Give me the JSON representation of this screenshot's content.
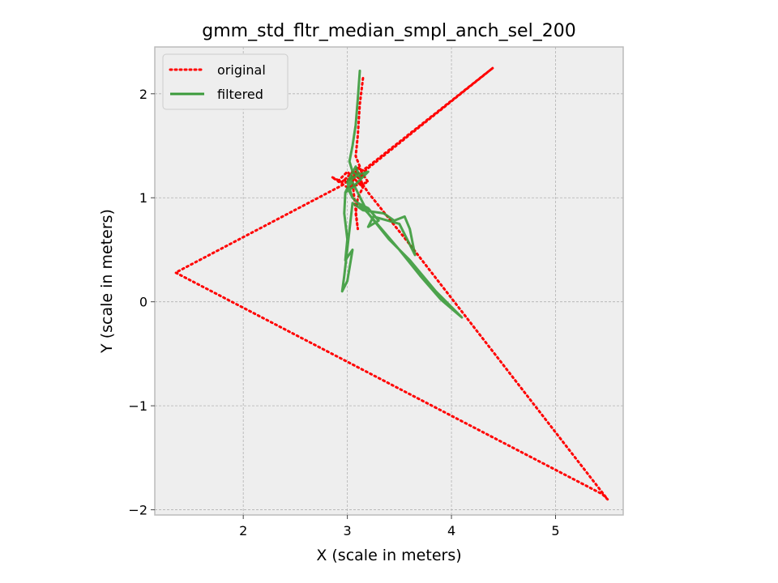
{
  "chart_data": {
    "type": "line",
    "title": "gmm_std_fltr_median_smpl_anch_sel_200",
    "xlabel": "X (scale in meters)",
    "ylabel": "Y (scale in meters)",
    "xlim": [
      1.15,
      5.65
    ],
    "ylim": [
      -2.05,
      2.45
    ],
    "xticks": [
      2,
      3,
      4,
      5
    ],
    "xtick_labels": [
      "2",
      "3",
      "4",
      "5"
    ],
    "yticks": [
      -2,
      -1,
      0,
      1,
      2
    ],
    "ytick_labels": [
      "−2",
      "−1",
      "0",
      "1",
      "2"
    ],
    "grid": true,
    "legend_position": "top-left",
    "series": [
      {
        "name": "original",
        "color": "#ff0000",
        "style": "dotted",
        "x": [
          3.15,
          3.12,
          3.1,
          3.08,
          3.12,
          3.15,
          3.05,
          2.95,
          2.85,
          3.0,
          3.2,
          3.1,
          3.05,
          3.15,
          3.12,
          4.4,
          3.2,
          3.05,
          2.95,
          1.35,
          5.45,
          5.5,
          3.6,
          3.2,
          3.1,
          2.9,
          3.0,
          3.15,
          3.1,
          3.08,
          3.1,
          3.05,
          3.08
        ],
        "y": [
          2.15,
          1.9,
          1.6,
          1.4,
          1.3,
          1.2,
          1.25,
          1.15,
          1.2,
          1.1,
          1.15,
          1.3,
          1.2,
          1.1,
          1.22,
          2.25,
          1.3,
          1.2,
          1.12,
          0.28,
          -1.85,
          -1.9,
          0.55,
          1.05,
          1.2,
          1.15,
          1.25,
          1.1,
          1.0,
          0.85,
          0.7,
          1.15,
          1.25
        ]
      },
      {
        "name": "filtered",
        "color": "#3a9a3a",
        "style": "solid",
        "x": [
          3.12,
          3.1,
          3.08,
          3.05,
          3.02,
          3.05,
          3.12,
          3.08,
          3.0,
          3.1,
          3.2,
          3.05,
          2.98,
          3.05,
          2.98,
          2.97,
          3.0,
          2.98,
          3.05,
          3.0,
          2.95,
          2.97,
          3.05,
          3.15,
          3.35,
          3.45,
          3.55,
          3.6,
          3.65,
          3.5,
          3.25,
          3.2,
          3.3,
          3.2,
          3.1,
          3.05,
          3.0,
          3.05,
          3.2,
          3.5,
          3.7,
          3.9,
          4.1,
          3.85,
          3.6,
          3.4,
          3.2,
          3.05,
          3.0
        ],
        "y": [
          2.22,
          1.95,
          1.7,
          1.5,
          1.35,
          1.25,
          1.2,
          1.3,
          1.15,
          1.22,
          1.25,
          1.1,
          1.05,
          1.2,
          1.05,
          0.85,
          0.6,
          0.4,
          0.5,
          0.2,
          0.1,
          0.25,
          0.95,
          0.88,
          0.85,
          0.78,
          0.82,
          0.7,
          0.45,
          0.75,
          0.82,
          0.72,
          0.78,
          0.9,
          0.95,
          1.0,
          1.1,
          1.15,
          0.85,
          0.5,
          0.25,
          0.02,
          -0.15,
          0.1,
          0.4,
          0.6,
          0.85,
          1.0,
          1.15
        ]
      }
    ]
  }
}
